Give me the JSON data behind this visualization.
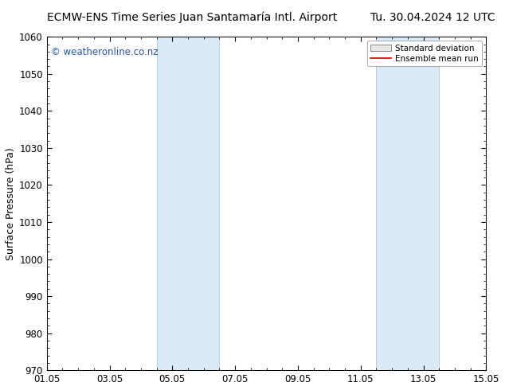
{
  "title_left": "ECMW-ENS Time Series Juan Santamaría Intl. Airport",
  "title_right": "Tu. 30.04.2024 12 UTC",
  "ylabel": "Surface Pressure (hPa)",
  "ylim": [
    970,
    1060
  ],
  "yticks": [
    970,
    980,
    990,
    1000,
    1010,
    1020,
    1030,
    1040,
    1050,
    1060
  ],
  "xlim": [
    0,
    14
  ],
  "xtick_labels": [
    "01.05",
    "03.05",
    "05.05",
    "07.05",
    "09.05",
    "11.05",
    "13.05",
    "15.05"
  ],
  "xtick_positions": [
    0,
    2,
    4,
    6,
    8,
    10,
    12,
    14
  ],
  "shaded_regions": [
    {
      "x_start": 3.5,
      "x_end": 5.5
    },
    {
      "x_start": 10.5,
      "x_end": 12.5
    }
  ],
  "shaded_color": "#daeaf7",
  "shaded_edge_color": "#a0c8e8",
  "background_color": "#ffffff",
  "watermark_text": "© weatheronline.co.nz",
  "watermark_color": "#2255bb",
  "legend_std_label": "Standard deviation",
  "legend_mean_label": "Ensemble mean run",
  "legend_mean_color": "#cc0000",
  "title_fontsize": 10,
  "axis_label_fontsize": 9,
  "tick_fontsize": 8.5,
  "watermark_fontsize": 8.5
}
